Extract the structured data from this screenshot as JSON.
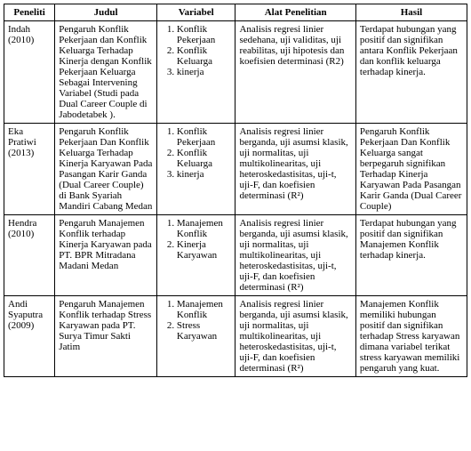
{
  "columns": [
    "Peneliti",
    "Judul",
    "Variabel",
    "Alat Penelitian",
    "Hasil"
  ],
  "rows": [
    {
      "peneliti": "Indah (2010)",
      "judul": "Pengaruh Konflik Pekerjaan dan Konflik Keluarga Terhadap Kinerja dengan Konflik Pekerjaan Keluarga Sebagai Intervening Variabel (Studi pada Dual Career Couple di Jabodetabek ).",
      "variabel": [
        "Konflik Pekerjaan",
        "Konflik Keluarga",
        "kinerja"
      ],
      "alat": "Analisis regresi linier sedehana, uji validitas, uji reabilitas, uji hipotesis dan koefisien determinasi  (R2)",
      "hasil": "Terdapat  hubungan yang  positif dan signifikan  antara Konflik  Pekerjaan dan konflik keluarga terhadap kinerja."
    },
    {
      "peneliti": "Eka  Pratiwi (2013)",
      "judul": "Pengaruh Konflik Pekerjaan Dan Konflik Keluarga Terhadap Kinerja Karyawan Pada Pasangan Karir Ganda (Dual Career Couple) di Bank Syariah Mandiri Cabang Medan",
      "variabel": [
        "Konflik Pekerjaan",
        "Konflik Keluarga",
        "kinerja"
      ],
      "alat": "Analisis regresi linier berganda, uji asumsi klasik, uji normalitas, uji multikolinearitas, uji   heteroskedastisitas, uji-t, uji-F, dan koefisien determinasi (R²)",
      "hasil": "Pengaruh Konflik Pekerjaan Dan Konflik  Keluarga sangat  berpegaruh signifikan Terhadap Kinerja Karyawan Pada Pasangan Karir Ganda (Dual Career Couple)"
    },
    {
      "peneliti": "Hendra (2010)",
      "judul": "Pengaruh Manajemen Konflik terhadap Kinerja Karyawan pada PT. BPR Mitradana Madani Medan",
      "variabel": [
        "Manajemen Konflik",
        "Kinerja Karyawan"
      ],
      "alat": "Analisis regresi linier berganda, uji asumsi klasik, uji normalitas, uji multikolinearitas, uji heteroskedastisitas, uji-t, uji-F, dan koefisien determinasi (R²)",
      "hasil": "Terdapat hubungan yang  positif dan signifikan Manajemen Konflik terhadap kinerja."
    },
    {
      "peneliti": "Andi Syaputra (2009)",
      "judul": "Pengaruh Manajemen Konflik terhadap Stress  Karyawan pada PT. Surya Timur Sakti Jatim",
      "variabel": [
        "Manajemen Konflik",
        "Stress Karyawan"
      ],
      "alat": "Analisis regresi linier berganda, uji asumsi klasik, uji normalitas, uji multikolinearitas, uji heteroskedastisitas, uji-t, uji-F, dan koefisien determinasi (R²)",
      "hasil": "Manajemen Konflik memiliki hubungan positif dan signifikan terhadap Stress karyawan dimana variabel terikat stress karyawan  memiliki pengaruh yang kuat."
    }
  ]
}
